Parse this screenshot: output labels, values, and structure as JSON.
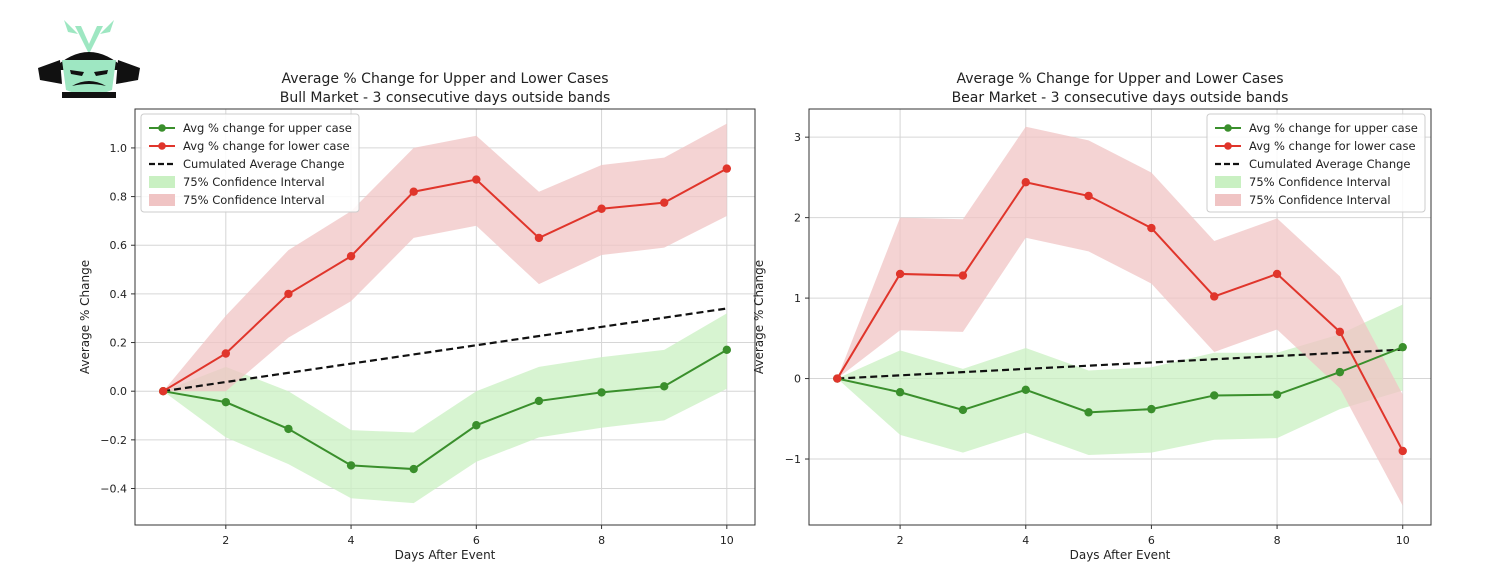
{
  "chart_data": [
    {
      "type": "line",
      "title": "Average % Change for Upper and Lower Cases",
      "subtitle": "Bull Market - 3 consecutive days outside bands",
      "xlabel": "Days After Event",
      "ylabel": "Average % Change",
      "xlim": [
        0.55,
        10.45
      ],
      "ylim": [
        -0.55,
        1.16
      ],
      "xticks": [
        2,
        4,
        6,
        8,
        10
      ],
      "xtick_labels": [
        "2",
        "4",
        "6",
        "8",
        "10"
      ],
      "yticks": [
        -0.4,
        -0.2,
        0.0,
        0.2,
        0.4,
        0.6,
        0.8,
        1.0
      ],
      "ytick_labels": [
        "−0.4",
        "−0.2",
        "0.0",
        "0.2",
        "0.4",
        "0.6",
        "0.8",
        "1.0"
      ],
      "grid": true,
      "legend_position": "top-left",
      "x": [
        1,
        2,
        3,
        4,
        5,
        6,
        7,
        8,
        9,
        10
      ],
      "series": [
        {
          "name": "Avg % change for upper case",
          "color": "#3a8f2c",
          "values": [
            0.0,
            -0.045,
            -0.155,
            -0.305,
            -0.32,
            -0.14,
            -0.04,
            -0.005,
            0.02,
            0.17
          ],
          "ci_lower": [
            0.0,
            -0.19,
            -0.3,
            -0.44,
            -0.46,
            -0.29,
            -0.19,
            -0.15,
            -0.12,
            0.01
          ],
          "ci_upper": [
            0.0,
            0.1,
            0.0,
            -0.16,
            -0.17,
            0.0,
            0.1,
            0.14,
            0.17,
            0.32
          ],
          "ci_name": "75% Confidence Interval",
          "ci_color": "#c9f0c2"
        },
        {
          "name": "Avg % change for lower case",
          "color": "#e0352b",
          "values": [
            0.0,
            0.155,
            0.4,
            0.555,
            0.82,
            0.87,
            0.63,
            0.75,
            0.775,
            0.915
          ],
          "ci_lower": [
            0.0,
            0.0,
            0.22,
            0.37,
            0.63,
            0.68,
            0.44,
            0.56,
            0.59,
            0.72
          ],
          "ci_upper": [
            0.0,
            0.31,
            0.58,
            0.74,
            1.0,
            1.05,
            0.82,
            0.93,
            0.96,
            1.1
          ],
          "ci_name": "75% Confidence Interval",
          "ci_color": "#f0c4c4"
        }
      ],
      "cumulative": {
        "name": "Cumulated Average Change",
        "color": "#111111",
        "x": [
          1,
          10
        ],
        "values": [
          0.0,
          0.34
        ]
      }
    },
    {
      "type": "line",
      "title": "Average % Change for Upper and Lower Cases",
      "subtitle": "Bear Market - 3 consecutive days outside bands",
      "xlabel": "Days After Event",
      "ylabel": "Average % Change",
      "xlim": [
        0.55,
        10.45
      ],
      "ylim": [
        -1.82,
        3.35
      ],
      "xticks": [
        2,
        4,
        6,
        8,
        10
      ],
      "xtick_labels": [
        "2",
        "4",
        "6",
        "8",
        "10"
      ],
      "yticks": [
        -1,
        0,
        1,
        2,
        3
      ],
      "ytick_labels": [
        "−1",
        "0",
        "1",
        "2",
        "3"
      ],
      "grid": true,
      "legend_position": "top-right",
      "x": [
        1,
        2,
        3,
        4,
        5,
        6,
        7,
        8,
        9,
        10
      ],
      "series": [
        {
          "name": "Avg % change for upper case",
          "color": "#3a8f2c",
          "values": [
            0.0,
            -0.17,
            -0.39,
            -0.14,
            -0.42,
            -0.38,
            -0.21,
            -0.2,
            0.08,
            0.39
          ],
          "ci_lower": [
            0.0,
            -0.7,
            -0.92,
            -0.67,
            -0.95,
            -0.92,
            -0.76,
            -0.74,
            -0.38,
            -0.15
          ],
          "ci_upper": [
            0.0,
            0.35,
            0.12,
            0.38,
            0.1,
            0.14,
            0.32,
            0.32,
            0.55,
            0.92
          ],
          "ci_name": "75% Confidence Interval",
          "ci_color": "#c9f0c2"
        },
        {
          "name": "Avg % change for lower case",
          "color": "#e0352b",
          "values": [
            0.0,
            1.3,
            1.28,
            2.44,
            2.27,
            1.87,
            1.02,
            1.3,
            0.58,
            -0.9
          ],
          "ci_lower": [
            0.0,
            0.6,
            0.58,
            1.75,
            1.58,
            1.18,
            0.33,
            0.61,
            -0.12,
            -1.58
          ],
          "ci_upper": [
            0.0,
            2.0,
            1.98,
            3.13,
            2.96,
            2.56,
            1.71,
            1.99,
            1.27,
            -0.2
          ],
          "ci_name": "75% Confidence Interval",
          "ci_color": "#f0c4c4"
        }
      ],
      "cumulative": {
        "name": "Cumulated Average Change",
        "color": "#111111",
        "x": [
          1,
          10
        ],
        "values": [
          0.0,
          0.36
        ]
      }
    }
  ]
}
